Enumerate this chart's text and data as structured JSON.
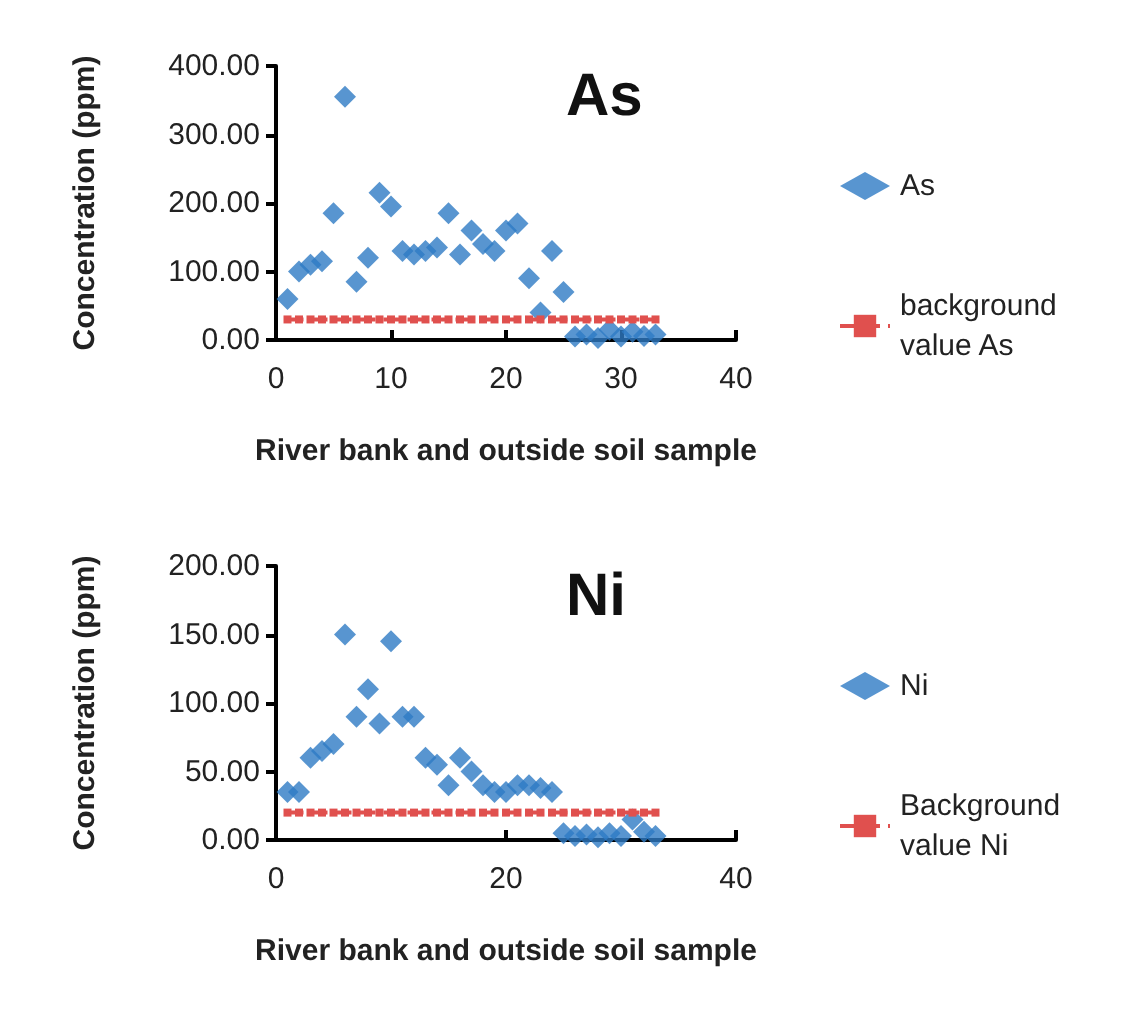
{
  "chart_data": [
    {
      "type": "scatter",
      "title": "As",
      "xlabel": "River bank and outside soil sample",
      "ylabel": "Concentration (ppm)",
      "xlim": [
        0,
        40
      ],
      "xticks": [
        0,
        10,
        20,
        30,
        40
      ],
      "ylim": [
        0,
        400
      ],
      "yticks": [
        {
          "value": 0,
          "label": "0.00"
        },
        {
          "value": 100,
          "label": "100.00"
        },
        {
          "value": 200,
          "label": "200.00"
        },
        {
          "value": 300,
          "label": "300.00"
        },
        {
          "value": 400,
          "label": "400.00"
        }
      ],
      "grid": false,
      "legend": "right",
      "series": [
        {
          "name": "As",
          "color": "#2e7bc4",
          "marker": "diamond",
          "x": [
            1,
            2,
            3,
            4,
            5,
            6,
            7,
            8,
            9,
            10,
            11,
            12,
            13,
            14,
            15,
            16,
            17,
            18,
            19,
            20,
            21,
            22,
            23,
            24,
            25,
            26,
            27,
            28,
            29,
            30,
            31,
            32,
            33
          ],
          "values": [
            60,
            100,
            110,
            115,
            185,
            355,
            85,
            120,
            215,
            195,
            130,
            125,
            130,
            135,
            185,
            125,
            160,
            140,
            130,
            160,
            170,
            90,
            40,
            130,
            70,
            5,
            8,
            3,
            15,
            5,
            12,
            6,
            8
          ]
        },
        {
          "name": "background value As",
          "type": "line",
          "color": "#e0504e",
          "marker": "square",
          "line_style": "dashed",
          "x": [
            1,
            2,
            3,
            4,
            5,
            6,
            7,
            8,
            9,
            10,
            11,
            12,
            13,
            14,
            15,
            16,
            17,
            18,
            19,
            20,
            21,
            22,
            23,
            24,
            25,
            26,
            27,
            28,
            29,
            30,
            31,
            32,
            33
          ],
          "values": [
            30,
            30,
            30,
            30,
            30,
            30,
            30,
            30,
            30,
            30,
            30,
            30,
            30,
            30,
            30,
            30,
            30,
            30,
            30,
            30,
            30,
            30,
            30,
            30,
            30,
            30,
            30,
            30,
            30,
            30,
            30,
            30,
            30
          ]
        }
      ]
    },
    {
      "type": "scatter",
      "title": "Ni",
      "xlabel": "River bank and outside soil sample",
      "ylabel": "Concentration (ppm)",
      "xlim": [
        0,
        40
      ],
      "xticks": [
        0,
        20,
        40
      ],
      "ylim": [
        0,
        200
      ],
      "yticks": [
        {
          "value": 0,
          "label": "0.00"
        },
        {
          "value": 50,
          "label": "50.00"
        },
        {
          "value": 100,
          "label": "100.00"
        },
        {
          "value": 150,
          "label": "150.00"
        },
        {
          "value": 200,
          "label": "200.00"
        }
      ],
      "grid": false,
      "legend": "right",
      "series": [
        {
          "name": "Ni",
          "color": "#2e7bc4",
          "marker": "diamond",
          "x": [
            1,
            2,
            3,
            4,
            5,
            6,
            7,
            8,
            9,
            10,
            11,
            12,
            13,
            14,
            15,
            16,
            17,
            18,
            19,
            20,
            21,
            22,
            23,
            24,
            25,
            26,
            27,
            28,
            29,
            30,
            31,
            32,
            33
          ],
          "values": [
            35,
            35,
            60,
            65,
            70,
            150,
            90,
            110,
            85,
            145,
            90,
            90,
            60,
            55,
            40,
            60,
            50,
            40,
            35,
            35,
            40,
            40,
            38,
            35,
            5,
            3,
            4,
            2,
            5,
            3,
            15,
            6,
            3
          ]
        },
        {
          "name": "Background value Ni",
          "type": "line",
          "color": "#e0504e",
          "marker": "square",
          "line_style": "dashed",
          "x": [
            1,
            2,
            3,
            4,
            5,
            6,
            7,
            8,
            9,
            10,
            11,
            12,
            13,
            14,
            15,
            16,
            17,
            18,
            19,
            20,
            21,
            22,
            23,
            24,
            25,
            26,
            27,
            28,
            29,
            30,
            31,
            32,
            33
          ],
          "values": [
            20,
            20,
            20,
            20,
            20,
            20,
            20,
            20,
            20,
            20,
            20,
            20,
            20,
            20,
            20,
            20,
            20,
            20,
            20,
            20,
            20,
            20,
            20,
            20,
            20,
            20,
            20,
            20,
            20,
            20,
            20,
            20,
            20
          ]
        }
      ]
    }
  ]
}
